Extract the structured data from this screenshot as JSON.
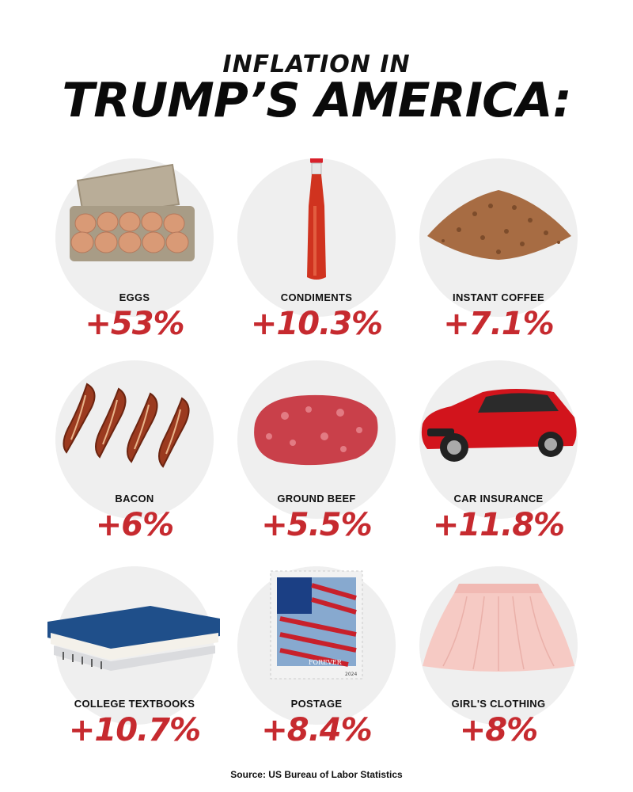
{
  "header": {
    "line1": "INFLATION IN",
    "line2": "TRUMP’S AMERICA:"
  },
  "items": [
    {
      "label": "EGGS",
      "value": "+53%",
      "icon": "egg-carton-icon"
    },
    {
      "label": "CONDIMENTS",
      "value": "+10.3%",
      "icon": "hot-sauce-bottle-icon"
    },
    {
      "label": "INSTANT COFFEE",
      "value": "+7.1%",
      "icon": "coffee-granules-icon"
    },
    {
      "label": "BACON",
      "value": "+6%",
      "icon": "bacon-strips-icon"
    },
    {
      "label": "GROUND BEEF",
      "value": "+5.5%",
      "icon": "ground-beef-icon"
    },
    {
      "label": "CAR INSURANCE",
      "value": "+11.8%",
      "icon": "red-car-icon"
    },
    {
      "label": "COLLEGE TEXTBOOKS",
      "value": "+10.7%",
      "icon": "textbooks-icon"
    },
    {
      "label": "POSTAGE",
      "value": "+8.4%",
      "icon": "flag-stamp-icon"
    },
    {
      "label": "GIRL'S CLOTHING",
      "value": "+8%",
      "icon": "pink-skirt-icon"
    }
  ],
  "stamp_text": "FOREVER",
  "stamp_year": "2024",
  "colors": {
    "accent": "#c62a2f",
    "text": "#111111",
    "circle": "#efefef"
  },
  "footer": {
    "source": "Source: US Bureau of Labor Statistics"
  }
}
